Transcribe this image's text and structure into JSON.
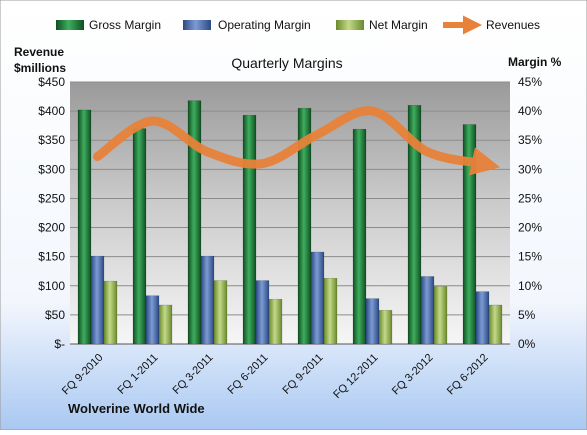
{
  "chart_data": {
    "type": "bar",
    "title": "Quarterly Margins",
    "company": "Wolverine World Wide",
    "left_axis_label_line1": "Revenue",
    "left_axis_label_line2": "$millions",
    "right_axis_label": "Margin %",
    "left_ylim": [
      0,
      450
    ],
    "right_ylim": [
      0,
      45
    ],
    "left_ticks": [
      "$-",
      "$50",
      "$100",
      "$150",
      "$200",
      "$250",
      "$300",
      "$350",
      "$400",
      "$450"
    ],
    "right_ticks": [
      "0%",
      "5%",
      "10%",
      "15%",
      "20%",
      "25%",
      "30%",
      "35%",
      "40%",
      "45%"
    ],
    "grid": true,
    "legend_position": "top",
    "categories": [
      "FQ 9-2010",
      "FQ 1-2011",
      "FQ 3-2011",
      "FQ 6-2011",
      "FQ 9-2011",
      "FQ 12-2011",
      "FQ 3-2012",
      "FQ 6-2012"
    ],
    "series": [
      {
        "name": "Gross Margin",
        "type": "bar",
        "axis": "right",
        "color": "#1e7b3a",
        "values": [
          40.2,
          37.0,
          41.8,
          39.3,
          40.5,
          36.9,
          41.0,
          37.7
        ]
      },
      {
        "name": "Operating Margin",
        "type": "bar",
        "axis": "right",
        "color": "#4a6fb0",
        "values": [
          15.1,
          8.3,
          15.1,
          10.9,
          15.8,
          7.8,
          11.6,
          9.0
        ]
      },
      {
        "name": "Net Margin",
        "type": "bar",
        "axis": "right",
        "color": "#9bb950",
        "values": [
          10.8,
          6.7,
          10.9,
          7.7,
          11.3,
          5.8,
          9.9,
          6.7
        ]
      },
      {
        "name": "Revenues",
        "type": "line",
        "axis": "left",
        "color": "#e8823a",
        "values": [
          322,
          383,
          330,
          310,
          360,
          400,
          330,
          310
        ]
      }
    ]
  }
}
